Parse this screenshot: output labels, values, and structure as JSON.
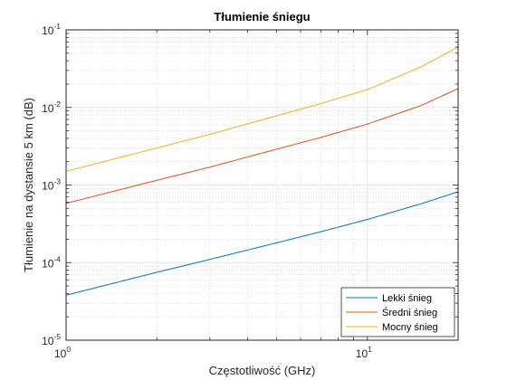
{
  "chart_data": {
    "type": "line",
    "title": "Tłumienie śniegu",
    "xlabel": "Częstotliwość (GHz)",
    "ylabel": "Tłumienie na dystansie 5 km (dB)",
    "xscale": "log",
    "yscale": "log",
    "xlim": [
      1,
      20
    ],
    "ylim": [
      1e-05,
      0.1
    ],
    "xticks": [
      {
        "value": 1,
        "base": "10",
        "exp": "0"
      },
      {
        "value": 10,
        "base": "10",
        "exp": "1"
      }
    ],
    "yticks": [
      {
        "value": 1e-05,
        "base": "10",
        "exp": "-5"
      },
      {
        "value": 0.0001,
        "base": "10",
        "exp": "-4"
      },
      {
        "value": 0.001,
        "base": "10",
        "exp": "-3"
      },
      {
        "value": 0.01,
        "base": "10",
        "exp": "-2"
      },
      {
        "value": 0.1,
        "base": "10",
        "exp": "-1"
      }
    ],
    "grid": true,
    "minor_grid": true,
    "legend_position": "bottom-right",
    "series": [
      {
        "name": "Lekki śnieg",
        "color": "#0072BD",
        "x": [
          1,
          2,
          3,
          5,
          7,
          10,
          15,
          20
        ],
        "y": [
          3.8e-05,
          7.5e-05,
          0.00011,
          0.00018,
          0.00025,
          0.00036,
          0.00057,
          0.00082
        ]
      },
      {
        "name": "Średni śnieg",
        "color": "#D95319",
        "x": [
          1,
          2,
          3,
          5,
          7,
          10,
          15,
          20
        ],
        "y": [
          0.00058,
          0.00115,
          0.0017,
          0.0029,
          0.0041,
          0.0061,
          0.0105,
          0.0175
        ]
      },
      {
        "name": "Mocny śnieg",
        "color": "#EDB120",
        "x": [
          1,
          2,
          3,
          5,
          7,
          10,
          15,
          20
        ],
        "y": [
          0.0015,
          0.003,
          0.0045,
          0.0078,
          0.0112,
          0.017,
          0.033,
          0.06
        ]
      }
    ]
  }
}
